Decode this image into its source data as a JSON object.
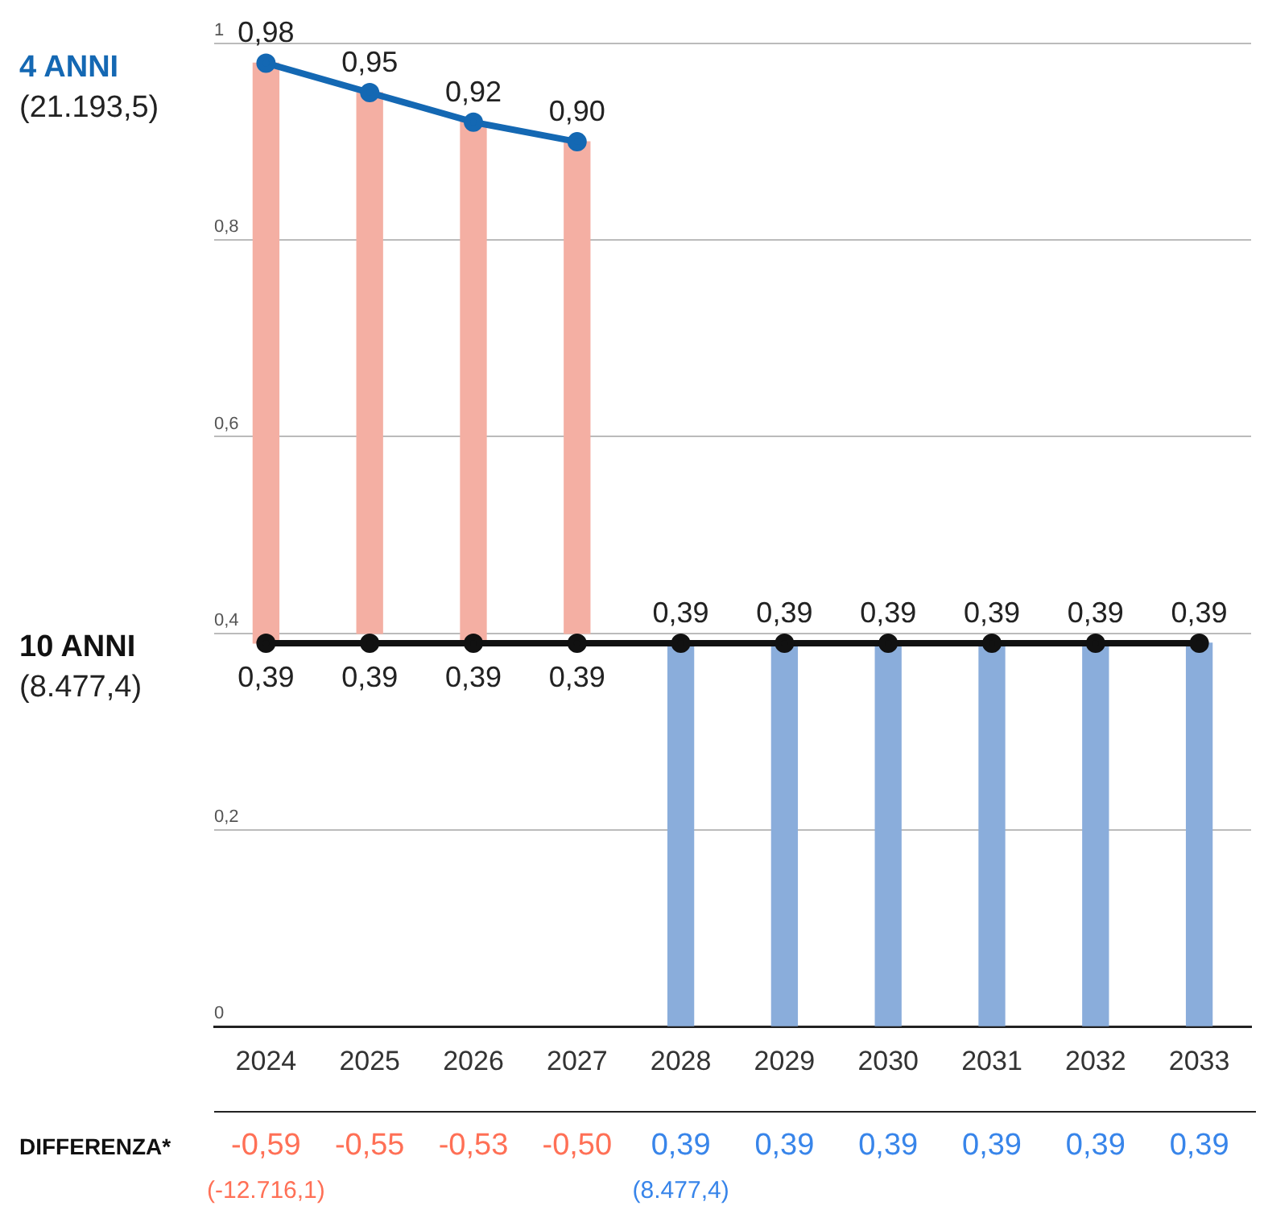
{
  "chart_data": {
    "type": "line",
    "categories": [
      "2024",
      "2025",
      "2026",
      "2027",
      "2028",
      "2029",
      "2030",
      "2031",
      "2032",
      "2033"
    ],
    "series": [
      {
        "type": "bar",
        "base": [
          0.98,
          0.95,
          0.92,
          0.9,
          0,
          0,
          0,
          0,
          0,
          0
        ],
        "values": [
          -0.59,
          -0.55,
          -0.53,
          -0.5,
          0.39,
          0.39,
          0.39,
          0.39,
          0.39,
          0.39
        ],
        "colors": [
          "#f4afa3",
          "#f4afa3",
          "#f4afa3",
          "#f4afa3",
          "#8aaddb",
          "#8aaddb",
          "#8aaddb",
          "#8aaddb",
          "#8aaddb",
          "#8aaddb"
        ],
        "value_labels": [
          "-0,59",
          "-0,55",
          "-0,53",
          "-0,50",
          "0,39",
          "0,39",
          "0,39",
          "0,39",
          "0,39",
          "0,39"
        ]
      },
      {
        "name": "4 ANNI",
        "color": "#1468b3",
        "values": [
          0.98,
          0.95,
          0.92,
          0.9,
          null,
          null,
          null,
          null,
          null,
          null
        ],
        "value_labels": [
          "0,98",
          "0,95",
          "0,92",
          "0,90",
          null,
          null,
          null,
          null,
          null,
          null
        ]
      },
      {
        "name": "10 ANNI",
        "color": "#111111",
        "values": [
          0.39,
          0.39,
          0.39,
          0.39,
          0.39,
          0.39,
          0.39,
          0.39,
          0.39,
          0.39
        ],
        "value_labels": [
          "0,39",
          "0,39",
          "0,39",
          "0,39",
          "0,39",
          "0,39",
          "0,39",
          "0,39",
          "0,39",
          "0,39"
        ]
      }
    ],
    "ylim": [
      0,
      1
    ],
    "yticks": [
      0,
      {
        "value": 0.2,
        "label": "0,2"
      },
      {
        "value": 0.4,
        "label": "0,4"
      },
      {
        "value": 0.6,
        "label": "0,6"
      },
      {
        "value": 0.8,
        "label": "0,8"
      },
      1
    ],
    "grid": "y",
    "legend": false,
    "marker": "circle",
    "line_style": "solid",
    "annotations": [
      "DIFFERENZA*",
      "(21.193,5)",
      "(8.477,4)",
      "(-12.716,1)",
      "(8.477,4)"
    ]
  }
}
